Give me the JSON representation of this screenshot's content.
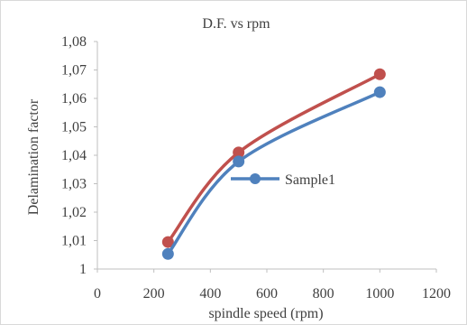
{
  "chart_data": {
    "type": "line",
    "title": "D.F. vs rpm",
    "xlabel": "spindle speed (rpm)",
    "ylabel": "Delamination factor",
    "xlim": [
      0,
      1200
    ],
    "ylim": [
      1,
      1.08
    ],
    "xticks": [
      0,
      200,
      400,
      600,
      800,
      1000,
      1200
    ],
    "xtick_labels": [
      "0",
      "200",
      "400",
      "600",
      "800",
      "1000",
      "1200"
    ],
    "yticks": [
      1,
      1.01,
      1.02,
      1.03,
      1.04,
      1.05,
      1.06,
      1.07,
      1.08
    ],
    "ytick_labels": [
      "1",
      "1,01",
      "1,02",
      "1,03",
      "1,04",
      "1,05",
      "1,06",
      "1,07",
      "1,08"
    ],
    "grid": false,
    "legend_position": "inside-center",
    "series": [
      {
        "name": "",
        "color": "#c0504d",
        "smooth": true,
        "marker": "circle",
        "x": [
          250,
          500,
          1000
        ],
        "y": [
          1.0095,
          1.041,
          1.0685
        ]
      },
      {
        "name": "Sample1",
        "color": "#4f81bd",
        "smooth": true,
        "marker": "circle",
        "x": [
          250,
          500,
          1000
        ],
        "y": [
          1.0053,
          1.0378,
          1.0622
        ]
      }
    ]
  }
}
